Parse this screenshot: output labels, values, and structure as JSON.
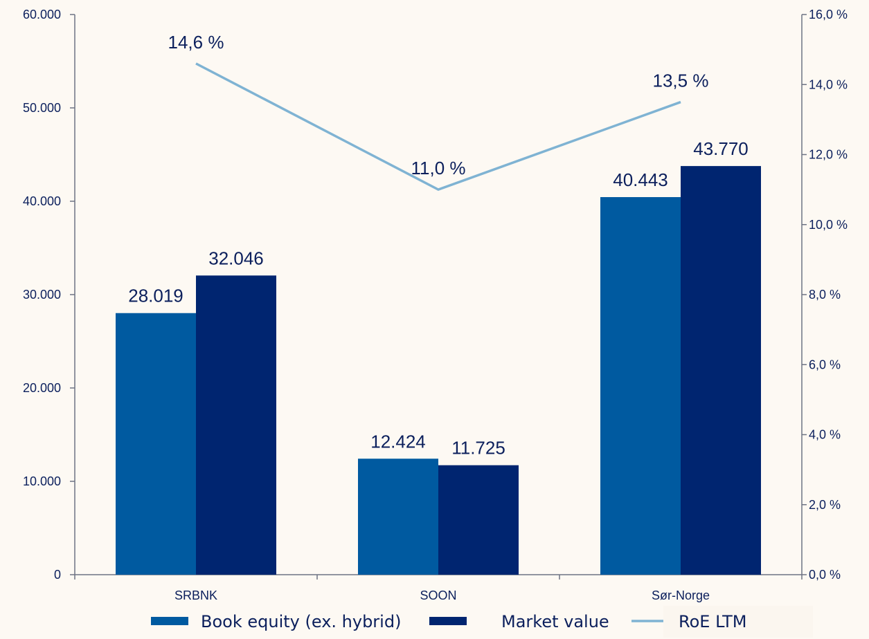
{
  "chart_data": {
    "type": "bar",
    "categories": [
      "SRBNK",
      "SOON",
      "Sør-Norge"
    ],
    "series": [
      {
        "name": "Book equity (ex. hybrid)",
        "type": "bar",
        "axis": "left",
        "values": [
          28019,
          12424,
          40443
        ],
        "labels": [
          "28.019",
          "12.424",
          "40.443"
        ],
        "color": "#005aa0"
      },
      {
        "name": "Market value",
        "type": "bar",
        "axis": "left",
        "values": [
          32046,
          11725,
          43770
        ],
        "labels": [
          "32.046",
          "11.725",
          "43.770"
        ],
        "color": "#002570"
      },
      {
        "name": "RoE LTM",
        "type": "line",
        "axis": "right",
        "values": [
          14.6,
          11.0,
          13.5
        ],
        "labels": [
          "14,6 %",
          "11,0 %",
          "13,5 %"
        ],
        "color": "#7fb3d3"
      }
    ],
    "y_left": {
      "min": 0,
      "max": 60000,
      "ticks": [
        0,
        10000,
        20000,
        30000,
        40000,
        50000,
        60000
      ],
      "tick_labels": [
        "0",
        "10.000",
        "20.000",
        "30.000",
        "40.000",
        "50.000",
        "60.000"
      ]
    },
    "y_right": {
      "min": 0,
      "max": 16,
      "ticks": [
        0,
        2,
        4,
        6,
        8,
        10,
        12,
        14,
        16
      ],
      "tick_labels": [
        "0,0 %",
        "2,0 %",
        "4,0 %",
        "6,0 %",
        "8,0 %",
        "10,0 %",
        "12,0 %",
        "14,0 %",
        "16,0 %"
      ]
    },
    "title": "",
    "xlabel": "",
    "ylabel": "",
    "grid": false,
    "legend_position": "bottom"
  }
}
